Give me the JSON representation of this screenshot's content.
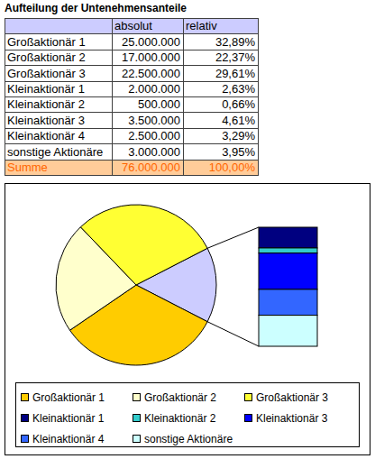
{
  "table": {
    "title": "Aufteilung der Untenehmensanteile",
    "header": [
      "absolut",
      "relativ"
    ],
    "rows": [
      [
        "Großaktionär 1",
        "25.000.000",
        "32,89%"
      ],
      [
        "Großaktionär 2",
        "17.000.000",
        "22,37%"
      ],
      [
        "Großaktionär 3",
        "22.500.000",
        "29,61%"
      ],
      [
        "Kleinaktionär 1",
        "2.000.000",
        "2,63%"
      ],
      [
        "Kleinaktionär 2",
        "500.000",
        "0,66%"
      ],
      [
        "Kleinaktionär 3",
        "3.500.000",
        "4,61%"
      ],
      [
        "Kleinaktionär 4",
        "2.500.000",
        "3,29%"
      ],
      [
        "sonstige Aktionäre",
        "3.000.000",
        "3,95%"
      ]
    ],
    "footer": [
      "Summe",
      "76.000.000",
      "100,00%"
    ]
  },
  "chart_data": {
    "type": "pie",
    "categories": [
      "Großaktionär 1",
      "Großaktionär 2",
      "Großaktionär 3",
      "Kleinaktionär 1",
      "Kleinaktionär 2",
      "Kleinaktionär 3",
      "Kleinaktionär 4",
      "sonstige Aktionäre"
    ],
    "values": [
      25000000,
      17000000,
      22500000,
      2000000,
      500000,
      3500000,
      2500000,
      3000000
    ],
    "colors": [
      "#ffcc00",
      "#ffffcc",
      "#ffff33",
      "#000080",
      "#33cccc",
      "#0000ff",
      "#3366ff",
      "#ccffff"
    ],
    "legend": "bottom"
  }
}
